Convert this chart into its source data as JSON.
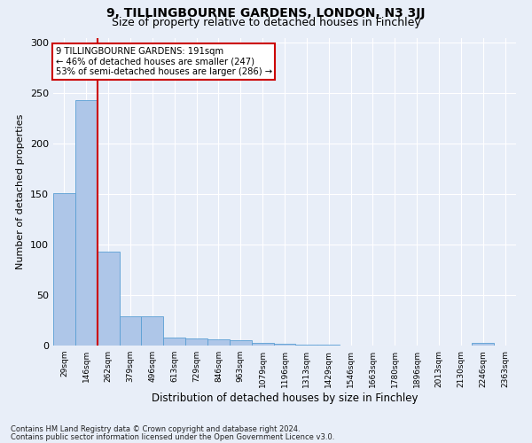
{
  "title1": "9, TILLINGBOURNE GARDENS, LONDON, N3 3JJ",
  "title2": "Size of property relative to detached houses in Finchley",
  "xlabel": "Distribution of detached houses by size in Finchley",
  "ylabel": "Number of detached properties",
  "bar_labels": [
    "29sqm",
    "146sqm",
    "262sqm",
    "379sqm",
    "496sqm",
    "613sqm",
    "729sqm",
    "846sqm",
    "963sqm",
    "1079sqm",
    "1196sqm",
    "1313sqm",
    "1429sqm",
    "1546sqm",
    "1663sqm",
    "1780sqm",
    "1896sqm",
    "2013sqm",
    "2130sqm",
    "2246sqm",
    "2363sqm"
  ],
  "bar_values": [
    151,
    243,
    93,
    29,
    29,
    8,
    7,
    6,
    5,
    3,
    2,
    1,
    1,
    0,
    0,
    0,
    0,
    0,
    0,
    3,
    0
  ],
  "bar_color": "#aec6e8",
  "bar_edge_color": "#5a9fd4",
  "highlight_color": "#cc0000",
  "vline_bar_index": 1,
  "ylim": [
    0,
    305
  ],
  "yticks": [
    0,
    50,
    100,
    150,
    200,
    250,
    300
  ],
  "annotation_text": "9 TILLINGBOURNE GARDENS: 191sqm\n← 46% of detached houses are smaller (247)\n53% of semi-detached houses are larger (286) →",
  "annotation_box_color": "#ffffff",
  "annotation_box_edge": "#cc0000",
  "footnote1": "Contains HM Land Registry data © Crown copyright and database right 2024.",
  "footnote2": "Contains public sector information licensed under the Open Government Licence v3.0.",
  "bg_color": "#e8eef8",
  "plot_bg_color": "#e8eef8",
  "grid_color": "#ffffff",
  "title1_fontsize": 10,
  "title2_fontsize": 9,
  "ylabel_fontsize": 8,
  "xlabel_fontsize": 8.5
}
